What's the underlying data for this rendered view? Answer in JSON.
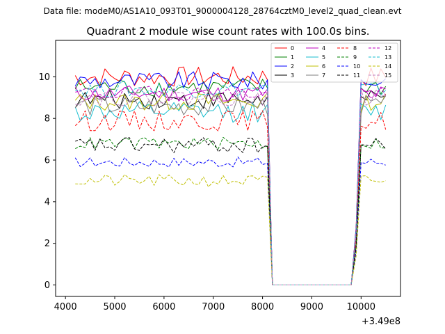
{
  "chart_data": {
    "type": "line",
    "suptitle": "Data file: modeM0/AS1A10_093T01_9000004128_28764cztM0_level2_quad_clean.evt",
    "title": "Quadrant 2 module wise count rates with 100.0s bins.",
    "xlabel": "",
    "ylabel": "",
    "x_offset_label": "+3.49e8",
    "xlim": [
      3800,
      10800
    ],
    "ylim": [
      -0.55,
      11.75
    ],
    "xticks": [
      4000,
      5000,
      6000,
      7000,
      8000,
      9000,
      10000
    ],
    "xtick_labels": [
      "4000",
      "5000",
      "6000",
      "7000",
      "8000",
      "9000",
      "10000"
    ],
    "yticks": [
      0,
      2,
      4,
      6,
      8,
      10
    ],
    "ytick_labels": [
      "0",
      "2",
      "4",
      "6",
      "8",
      "10"
    ],
    "legend_position": "top-right",
    "gap": {
      "start_x": 8100,
      "end_x": 9900,
      "value": 0
    },
    "series": [
      {
        "name": "0",
        "color": "#ff0000",
        "style": "solid",
        "base": 10.0,
        "amp": 0.5
      },
      {
        "name": "1",
        "color": "#008000",
        "style": "solid",
        "base": 9.5,
        "amp": 0.45
      },
      {
        "name": "2",
        "color": "#0000ff",
        "style": "solid",
        "base": 9.8,
        "amp": 0.45
      },
      {
        "name": "3",
        "color": "#000000",
        "style": "solid",
        "base": 8.9,
        "amp": 0.45
      },
      {
        "name": "4",
        "color": "#bf00bf",
        "style": "solid",
        "base": 9.2,
        "amp": 0.4
      },
      {
        "name": "5",
        "color": "#17becf",
        "style": "solid",
        "base": 8.3,
        "amp": 0.5
      },
      {
        "name": "6",
        "color": "#bfbf00",
        "style": "solid",
        "base": 8.8,
        "amp": 0.45
      },
      {
        "name": "7",
        "color": "#7f7f7f",
        "style": "solid",
        "base": 8.6,
        "amp": 0.5
      },
      {
        "name": "8",
        "color": "#ff0000",
        "style": "dashed",
        "base": 7.9,
        "amp": 0.5
      },
      {
        "name": "9",
        "color": "#008000",
        "style": "dashed",
        "base": 6.8,
        "amp": 0.3
      },
      {
        "name": "10",
        "color": "#0000ff",
        "style": "dashed",
        "base": 5.9,
        "amp": 0.25
      },
      {
        "name": "11",
        "color": "#000000",
        "style": "dashed",
        "base": 6.7,
        "amp": 0.4
      },
      {
        "name": "12",
        "color": "#bf00bf",
        "style": "dashed",
        "base": 9.2,
        "amp": 0.35
      },
      {
        "name": "13",
        "color": "#17becf",
        "style": "dashed",
        "base": 9.4,
        "amp": 0.4
      },
      {
        "name": "14",
        "color": "#bfbf00",
        "style": "dashed",
        "base": 5.0,
        "amp": 0.3
      },
      {
        "name": "15",
        "color": "#bf80bf",
        "style": "dashed",
        "base": 9.0,
        "amp": 0.4
      }
    ]
  }
}
